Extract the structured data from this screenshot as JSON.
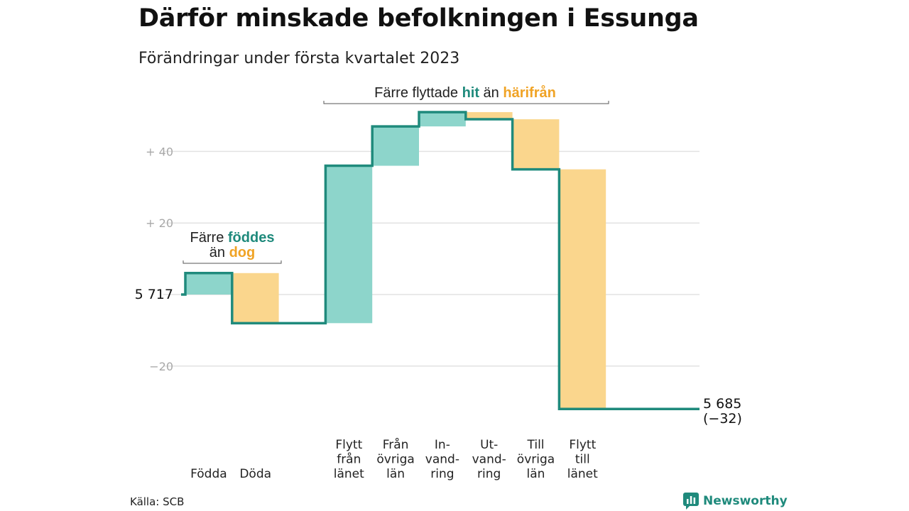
{
  "title": "Därför minskade befolkningen i Essunga",
  "subtitle": "Förändringar under första kvartalet 2023",
  "source": "Källa: SCB",
  "brand": "Newsworthy",
  "colors": {
    "increase": "#8dd5cb",
    "decrease": "#fad68d",
    "line": "#1f8a7c",
    "orange_text": "#f0a325",
    "grid": "#e2e2e2"
  },
  "annotations": [
    {
      "prefix": "Färre ",
      "green": "föddes",
      "middle": "",
      "line2_prefix": "än ",
      "orange": "dog"
    },
    {
      "prefix": "Färre flyttade ",
      "green": "hit",
      "middle": " än ",
      "orange": "härifrån"
    }
  ],
  "chart_data": {
    "type": "waterfall",
    "title": "Därför minskade befolkningen i Essunga",
    "subtitle": "Förändringar under första kvartalet 2023",
    "start_value": 5717,
    "start_label": "5 717",
    "end_label": "5 685",
    "end_change_label": "(−32)",
    "ylim": [
      -32,
      52
    ],
    "yticks": [
      {
        "value": 40,
        "label": "+ 40"
      },
      {
        "value": 20,
        "label": "+ 20"
      },
      {
        "value": -20,
        "label": "−20"
      }
    ],
    "categories": [
      {
        "label": [
          "Födda"
        ],
        "change": 6
      },
      {
        "label": [
          "Döda"
        ],
        "change": -14
      },
      {
        "label": [],
        "change": 0
      },
      {
        "label": [
          "Flytt",
          "från",
          "länet"
        ],
        "change": 44
      },
      {
        "label": [
          "Från",
          "övriga",
          "län"
        ],
        "change": 11
      },
      {
        "label": [
          "In-",
          "vand-",
          "ring"
        ],
        "change": 4
      },
      {
        "label": [
          "Ut-",
          "vand-",
          "ring"
        ],
        "change": -2
      },
      {
        "label": [
          "Till",
          "övriga",
          "län"
        ],
        "change": -14
      },
      {
        "label": [
          "Flytt",
          "till",
          "länet"
        ],
        "change": -67
      }
    ]
  }
}
